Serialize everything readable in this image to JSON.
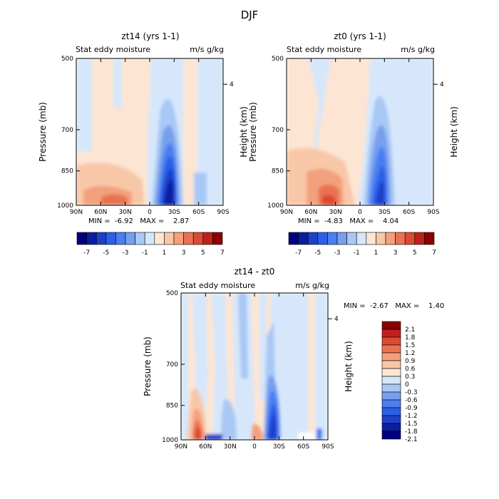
{
  "title": "DJF",
  "colors": {
    "full_scale": [
      "#00007f",
      "#0a1ea0",
      "#1e40c8",
      "#2c5ee6",
      "#4a7ef2",
      "#779fee",
      "#a9c8f5",
      "#d6e7fb",
      "#fce5d3",
      "#f8c7a8",
      "#f3a07b",
      "#ea7253",
      "#dc4a32",
      "#c0201d",
      "#8b0000"
    ],
    "diff_scale": [
      "#00007f",
      "#0a1ea0",
      "#1e40c8",
      "#2c5ee6",
      "#4a7ef2",
      "#779fee",
      "#a9c8f5",
      "#d6e7fb",
      "#fce5d3",
      "#f8c7a8",
      "#f3a07b",
      "#ea7253",
      "#dc4a32",
      "#c0201d",
      "#8b0000"
    ]
  },
  "chart_data": [
    {
      "type": "heatmap",
      "title": "zt14 (yrs 1-1)",
      "subtitle_left": "Stat eddy moisture",
      "subtitle_right": "m/s g/kg",
      "ylabel": "Pressure (mb)",
      "ylabel_right": "Height (km)",
      "xticks": [
        "90N",
        "60N",
        "30N",
        "0",
        "30S",
        "60S",
        "90S"
      ],
      "yticks": [
        "500",
        "700",
        "850",
        "1000"
      ],
      "right_ticks": [
        "4"
      ],
      "min_max_text": "MIN =  -6.92   MAX =    2.87",
      "min": -6.92,
      "max": 2.87,
      "legend_labels": [
        "-7",
        "-5",
        "-3",
        "-1",
        "1",
        "3",
        "5",
        "7"
      ],
      "features": [
        {
          "lat": 25,
          "p_top": 560,
          "p_bottom": 1000,
          "min_value": -7
        },
        {
          "lat": -40,
          "p_top": 780,
          "p_bottom": 1000,
          "min_value": -1
        },
        {
          "lat": 50,
          "p_top": 800,
          "p_bottom": 1000,
          "max_value": 3
        }
      ]
    },
    {
      "type": "heatmap",
      "title": "zt0 (yrs 1-1)",
      "subtitle_left": "Stat eddy moisture",
      "subtitle_right": "m/s g/kg",
      "ylabel": "Pressure (mb)",
      "ylabel_right": "Height (km)",
      "xticks": [
        "90N",
        "60N",
        "30N",
        "0",
        "30S",
        "60S",
        "90S"
      ],
      "yticks": [
        "500",
        "700",
        "850",
        "1000"
      ],
      "right_ticks": [
        "4"
      ],
      "min_max_text": "MIN =  -4.83   MAX =    4.04",
      "min": -4.83,
      "max": 4.04,
      "legend_labels": [
        "-7",
        "-5",
        "-3",
        "-1",
        "1",
        "3",
        "5",
        "7"
      ],
      "features": [
        {
          "lat": 25,
          "p_top": 620,
          "p_bottom": 1000,
          "min_value": -5
        },
        {
          "lat": 40,
          "p_top": 750,
          "p_bottom": 1000,
          "max_value": 4
        }
      ]
    },
    {
      "type": "heatmap",
      "title": "zt14 - zt0",
      "subtitle_left": "Stat eddy moisture",
      "subtitle_right": "m/s g/kg",
      "ylabel": "Pressure (mb)",
      "ylabel_right": "Height (km)",
      "xticks": [
        "90N",
        "60N",
        "30N",
        "0",
        "30S",
        "60S",
        "90S"
      ],
      "yticks": [
        "500",
        "700",
        "850",
        "1000"
      ],
      "right_ticks": [
        "4"
      ],
      "min_max_text": "MIN =  -2.67   MAX =    1.40",
      "min": -2.67,
      "max": 1.4,
      "legend_labels": [
        "2.1",
        "1.8",
        "1.5",
        "1.2",
        "0.9",
        "0.6",
        "0.3",
        "0",
        "-0.3",
        "-0.6",
        "-0.9",
        "-1.2",
        "-1.5",
        "-1.8",
        "-2.1"
      ],
      "features": [
        {
          "lat": 25,
          "p_top": 700,
          "p_bottom": 1000,
          "min_value": -2.1
        },
        {
          "lat": 60,
          "p_top": 750,
          "p_bottom": 1000,
          "max_value": 1.4
        }
      ]
    }
  ]
}
